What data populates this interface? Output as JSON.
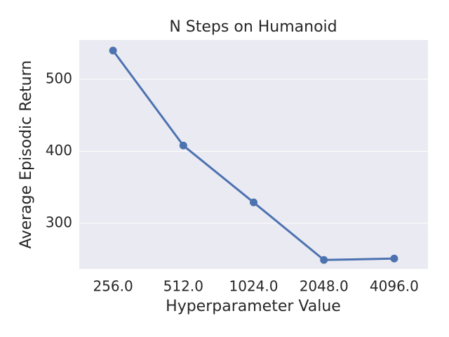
{
  "chart_data": {
    "type": "line",
    "title": "N Steps on Humanoid",
    "x_label": "Hyperparameter Value",
    "y_label": "Average Episodic Return",
    "categories": [
      "256.0",
      "512.0",
      "1024.0",
      "2048.0",
      "4096.0"
    ],
    "values": [
      540,
      408,
      329,
      249,
      251
    ],
    "color": "#4c72b0",
    "ylim": [
      236.6,
      554.6
    ],
    "yticks": [
      300,
      400,
      500
    ],
    "grid": true
  }
}
